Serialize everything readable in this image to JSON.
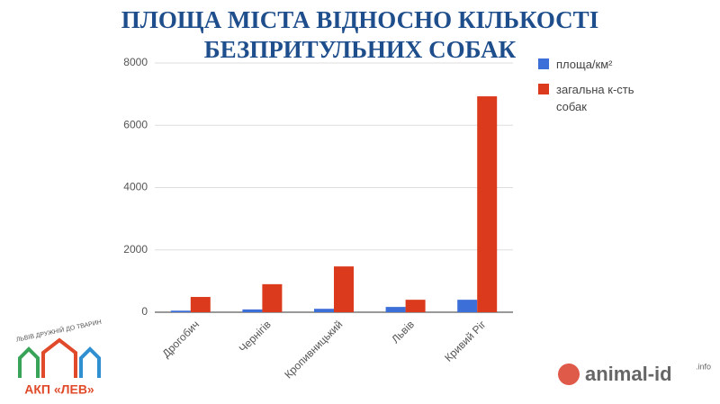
{
  "chart_data": {
    "type": "bar",
    "title": "ПЛОЩА МІСТА ВІДНОСНО КІЛЬКОСТІ БЕЗПРИТУЛЬНИХ СОБАК",
    "categories": [
      "Дрогобич",
      "Чернігів",
      "Кропивницький",
      "Львів",
      "Кривий Ріг"
    ],
    "series": [
      {
        "name": "площа/км²",
        "color": "#3c6fd8",
        "values": [
          50,
          90,
          110,
          170,
          400
        ]
      },
      {
        "name": "загальна к-сть собак",
        "color": "#db3a1d",
        "values": [
          490,
          900,
          1470,
          400,
          6930
        ]
      }
    ],
    "ylim": [
      0,
      8000
    ],
    "yticks": [
      0,
      2000,
      4000,
      6000,
      8000
    ],
    "grid": true,
    "legend": "right"
  },
  "logos": {
    "lev_slogan": "ЛЬВІВ ДРУЖНІЙ ДО ТВАРИН",
    "lev_name": "АКП «ЛЕВ»",
    "animal_id": "animal-id",
    "animal_id_suffix": ".info"
  }
}
